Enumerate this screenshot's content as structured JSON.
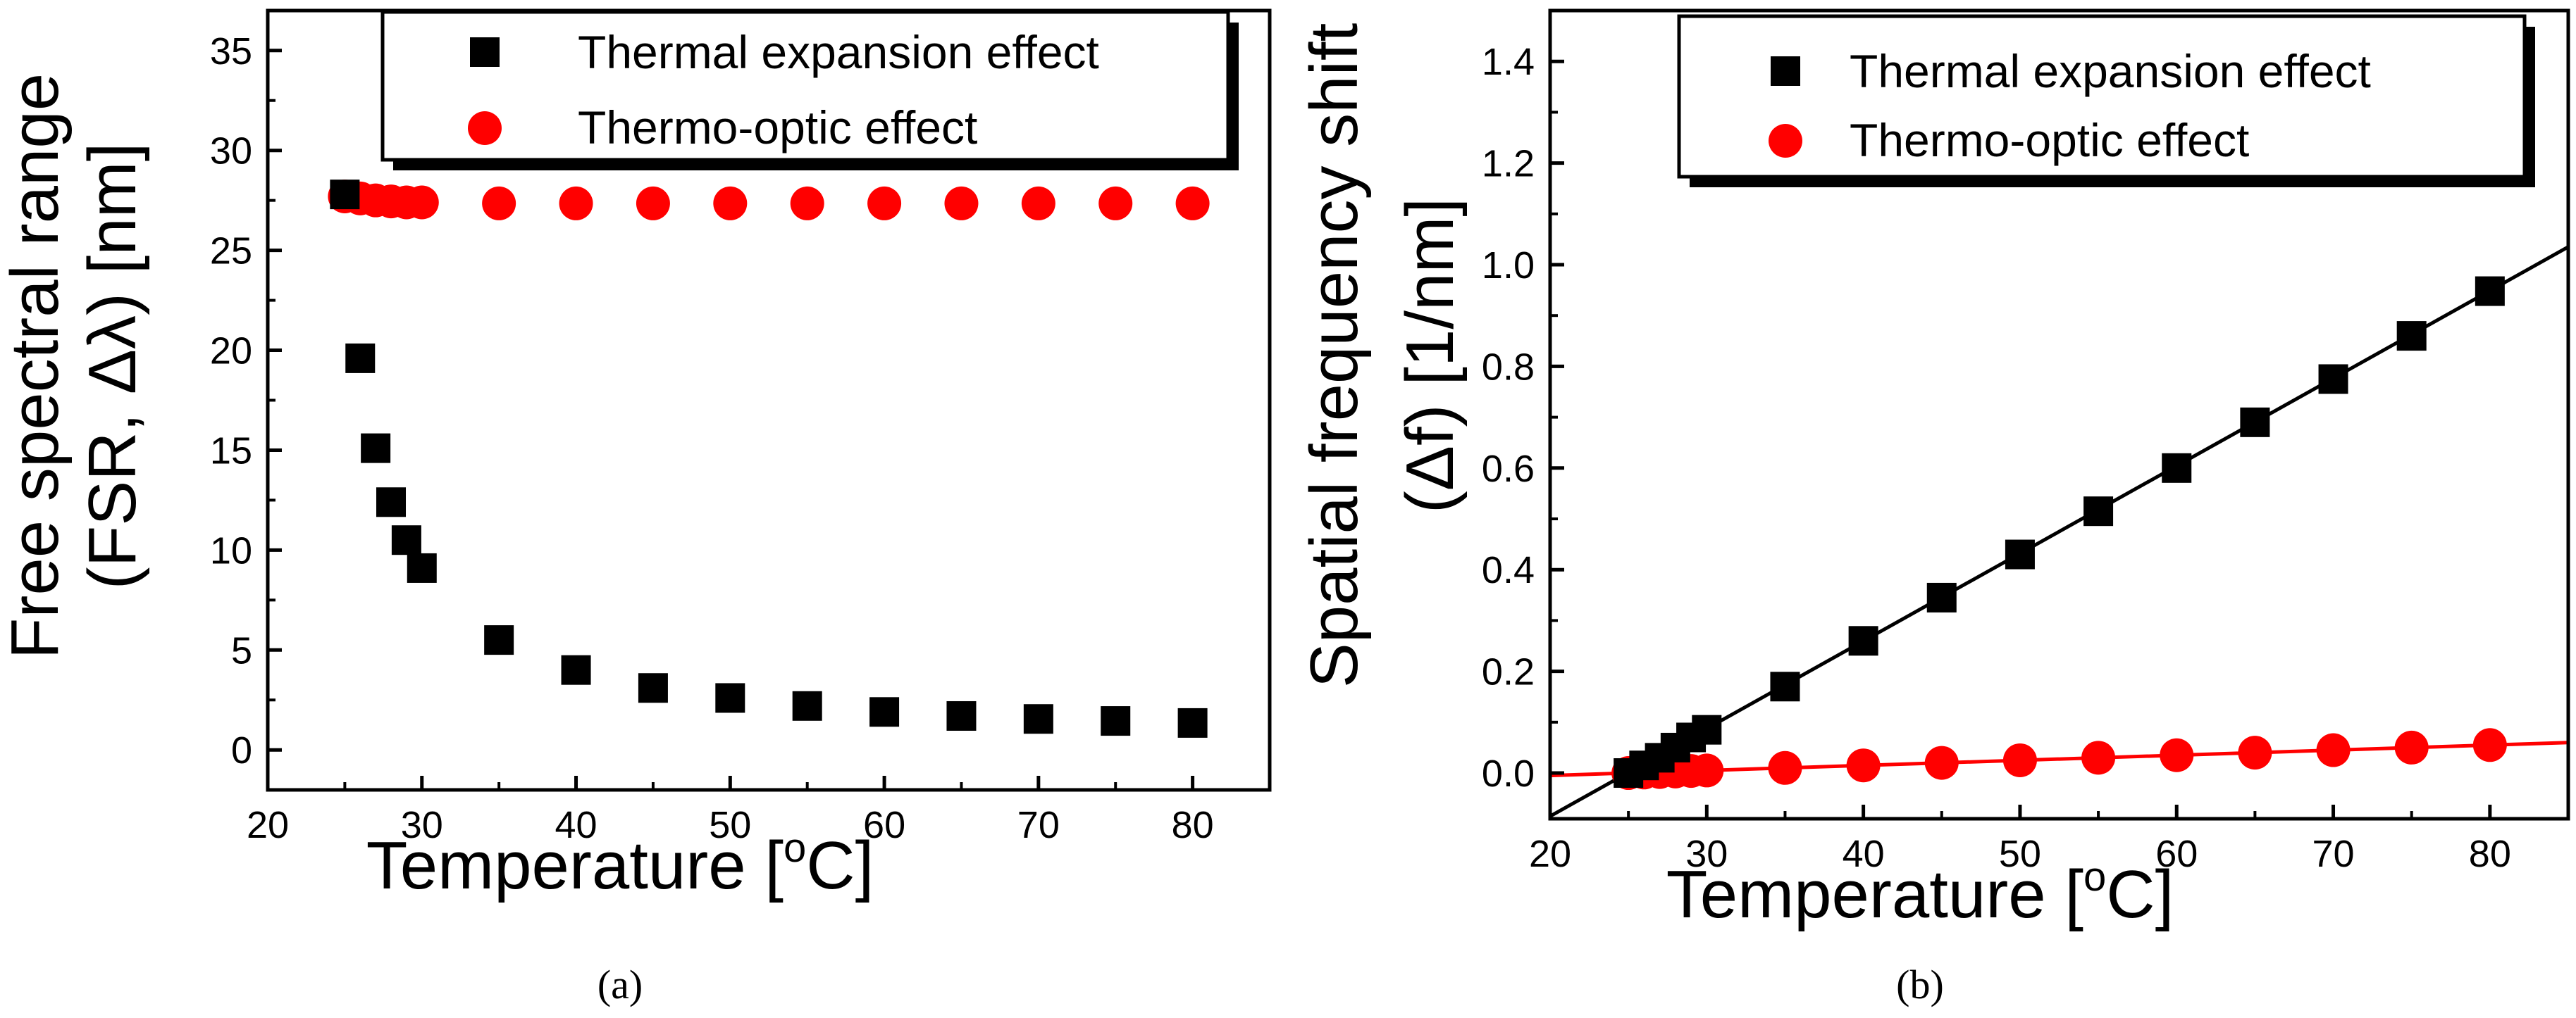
{
  "chart_data": [
    {
      "type": "scatter",
      "panel_label": "(a)",
      "xlabel": "Temperature [°C]",
      "xlabel_main": "Temperature [",
      "xlabel_sup": "o",
      "xlabel_end": "C]",
      "ylabel_line1": "Free spectral range",
      "ylabel_line2": "(FSR, Δλ) [nm]",
      "xlim": [
        20,
        85
      ],
      "ylim": [
        -2,
        37
      ],
      "xticks": [
        20,
        30,
        40,
        50,
        60,
        70,
        80
      ],
      "yticks": [
        0,
        5,
        10,
        15,
        20,
        25,
        30,
        35
      ],
      "legend_position": "top-right",
      "series": [
        {
          "name": "Thermal expansion effect",
          "marker": "square",
          "color": "#000000",
          "x": [
            25,
            26,
            27,
            28,
            29,
            30,
            35,
            40,
            45,
            50,
            55,
            60,
            65,
            70,
            75,
            80
          ],
          "y": [
            27.8,
            19.6,
            15.1,
            12.4,
            10.5,
            9.1,
            5.5,
            4.0,
            3.1,
            2.6,
            2.2,
            1.9,
            1.7,
            1.55,
            1.45,
            1.35
          ]
        },
        {
          "name": "Thermo-optic effect",
          "marker": "circle",
          "color": "#ff0000",
          "x": [
            25,
            26,
            27,
            28,
            29,
            30,
            35,
            40,
            45,
            50,
            55,
            60,
            65,
            70,
            75,
            80
          ],
          "y": [
            27.7,
            27.6,
            27.5,
            27.45,
            27.4,
            27.4,
            27.35,
            27.35,
            27.35,
            27.35,
            27.35,
            27.35,
            27.35,
            27.35,
            27.35,
            27.35
          ]
        }
      ]
    },
    {
      "type": "scatter",
      "panel_label": "(b)",
      "xlabel": "Temperature [°C]",
      "xlabel_main": "Temperature [",
      "xlabel_sup": "o",
      "xlabel_end": "C]",
      "ylabel_line1": "Spatial frequency shift",
      "ylabel_line2": "(Δf) [1/nm]",
      "xlim": [
        20,
        85
      ],
      "ylim": [
        -0.09,
        1.5
      ],
      "xticks": [
        20,
        30,
        40,
        50,
        60,
        70,
        80
      ],
      "yticks": [
        0.0,
        0.2,
        0.4,
        0.6,
        0.8,
        1.0,
        1.2,
        1.4
      ],
      "ytick_labels": [
        "0.0",
        "0.2",
        "0.4",
        "0.6",
        "0.8",
        "1.0",
        "1.2",
        "1.4"
      ],
      "legend_position": "top-right",
      "series": [
        {
          "name": "Thermal expansion effect",
          "marker": "square",
          "color": "#000000",
          "x": [
            25,
            26,
            27,
            28,
            29,
            30,
            35,
            40,
            45,
            50,
            55,
            60,
            65,
            70,
            75,
            80
          ],
          "y": [
            0.0,
            0.015,
            0.03,
            0.05,
            0.07,
            0.085,
            0.17,
            0.26,
            0.345,
            0.43,
            0.515,
            0.6,
            0.69,
            0.775,
            0.86,
            0.948
          ],
          "fit_line": {
            "x": [
              20,
              85
            ],
            "y": [
              -0.085,
              1.035
            ],
            "color": "#000000"
          }
        },
        {
          "name": "Thermo-optic effect",
          "marker": "circle",
          "color": "#ff0000",
          "x": [
            25,
            26,
            27,
            28,
            29,
            30,
            35,
            40,
            45,
            50,
            55,
            60,
            65,
            70,
            75,
            80
          ],
          "y": [
            0.0,
            0.001,
            0.002,
            0.003,
            0.004,
            0.005,
            0.01,
            0.015,
            0.02,
            0.025,
            0.03,
            0.035,
            0.04,
            0.045,
            0.05,
            0.055
          ],
          "fit_line": {
            "x": [
              20,
              85
            ],
            "y": [
              -0.005,
              0.06
            ],
            "color": "#ff0000"
          }
        }
      ]
    }
  ]
}
